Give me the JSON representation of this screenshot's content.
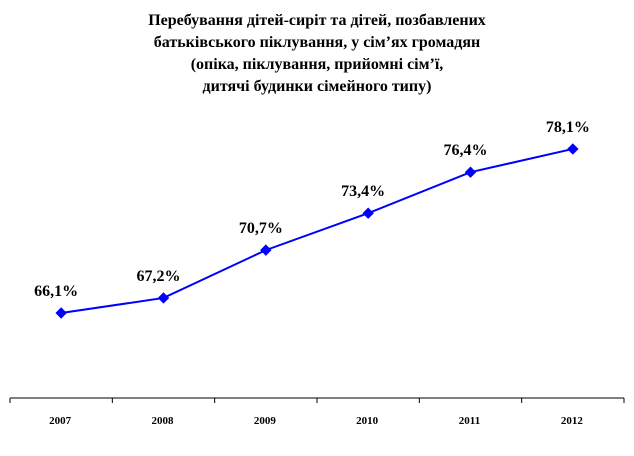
{
  "chart_data": {
    "type": "line",
    "title_lines": [
      "Перебування дітей-сиріт та дітей, позбавлених",
      "батьківського піклування, у сім’ях громадян",
      "(опіка, піклування, прийомні сім’ї,",
      "дитячі будинки сімейного типу)"
    ],
    "categories": [
      "2007",
      "2008",
      "2009",
      "2010",
      "2011",
      "2012"
    ],
    "values": [
      66.1,
      67.2,
      70.7,
      73.4,
      76.4,
      78.1
    ],
    "data_labels": [
      "66,1%",
      "67,2%",
      "70,7%",
      "73,4%",
      "76,4%",
      "78,1%"
    ],
    "series_color": "#0000ff",
    "marker": "diamond",
    "grid": false,
    "legend": "none"
  }
}
